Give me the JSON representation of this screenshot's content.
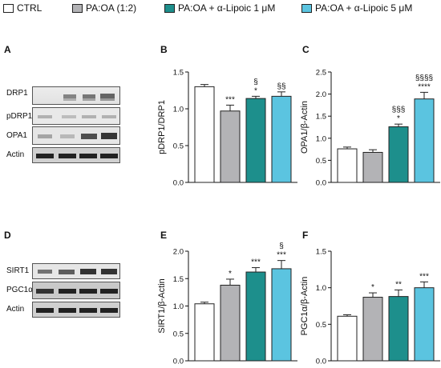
{
  "legend": {
    "items": [
      {
        "label": "CTRL",
        "color": "#ffffff"
      },
      {
        "label": "PA:OA (1:2)",
        "color": "#b3b3b6"
      },
      {
        "label": "PA:OA + α-Lipoic 1 μM",
        "color": "#1d8f8c"
      },
      {
        "label": "PA:OA + α-Lipoic 5 μM",
        "color": "#5bc4e0"
      }
    ]
  },
  "panels": {
    "A": "A",
    "B": "B",
    "C": "C",
    "D": "D",
    "E": "E",
    "F": "F"
  },
  "blots_top": {
    "labels": [
      "DRP1",
      "pDRP1",
      "OPA1",
      "Actin"
    ]
  },
  "blots_bottom": {
    "labels": [
      "SIRT1",
      "PGC1α",
      "Actin"
    ]
  },
  "chart_data": [
    {
      "panel": "B",
      "type": "bar",
      "ylabel": "pDRP1/DRP1",
      "ylim": [
        0,
        1.5
      ],
      "yticks": [
        "0.0",
        "0.5",
        "1.0",
        "1.5"
      ],
      "categories": [
        "CTRL",
        "PA:OA (1:2)",
        "PA:OA + α-Lipoic 1 μM",
        "PA:OA + α-Lipoic 5 μM"
      ],
      "values": [
        1.3,
        0.97,
        1.14,
        1.17
      ],
      "errors": [
        0.03,
        0.08,
        0.03,
        0.06
      ],
      "annotations": [
        [],
        [
          "***"
        ],
        [
          "*",
          "§"
        ],
        [
          "§§"
        ]
      ]
    },
    {
      "panel": "C",
      "type": "bar",
      "ylabel": "OPA1/β-Actin",
      "ylim": [
        0,
        2.5
      ],
      "yticks": [
        "0.0",
        "0.5",
        "1.0",
        "1.5",
        "2.0",
        "2.5"
      ],
      "categories": [
        "CTRL",
        "PA:OA (1:2)",
        "PA:OA + α-Lipoic 1 μM",
        "PA:OA + α-Lipoic 5 μM"
      ],
      "values": [
        0.76,
        0.68,
        1.26,
        1.89
      ],
      "errors": [
        0.04,
        0.06,
        0.06,
        0.15
      ],
      "annotations": [
        [],
        [],
        [
          "*",
          "§§§"
        ],
        [
          "****",
          "§§§§"
        ]
      ]
    },
    {
      "panel": "E",
      "type": "bar",
      "ylabel": "SIRT1/β-Actin",
      "ylim": [
        0,
        2.0
      ],
      "yticks": [
        "0.0",
        "0.5",
        "1.0",
        "1.5",
        "2.0"
      ],
      "categories": [
        "CTRL",
        "PA:OA (1:2)",
        "PA:OA + α-Lipoic 1 μM",
        "PA:OA + α-Lipoic 5 μM"
      ],
      "values": [
        1.04,
        1.38,
        1.62,
        1.68
      ],
      "errors": [
        0.03,
        0.11,
        0.08,
        0.15
      ],
      "annotations": [
        [],
        [
          "*"
        ],
        [
          "***"
        ],
        [
          "***",
          "§"
        ]
      ]
    },
    {
      "panel": "F",
      "type": "bar",
      "ylabel": "PGC1α/β-Actin",
      "ylim": [
        0,
        1.5
      ],
      "yticks": [
        "0.0",
        "0.5",
        "1.0",
        "1.5"
      ],
      "categories": [
        "CTRL",
        "PA:OA (1:2)",
        "PA:OA + α-Lipoic 1 μM",
        "PA:OA + α-Lipoic 5 μM"
      ],
      "values": [
        0.61,
        0.87,
        0.88,
        1.0
      ],
      "errors": [
        0.02,
        0.06,
        0.09,
        0.08
      ],
      "annotations": [
        [],
        [
          "*"
        ],
        [
          "**"
        ],
        [
          "***"
        ]
      ]
    }
  ]
}
